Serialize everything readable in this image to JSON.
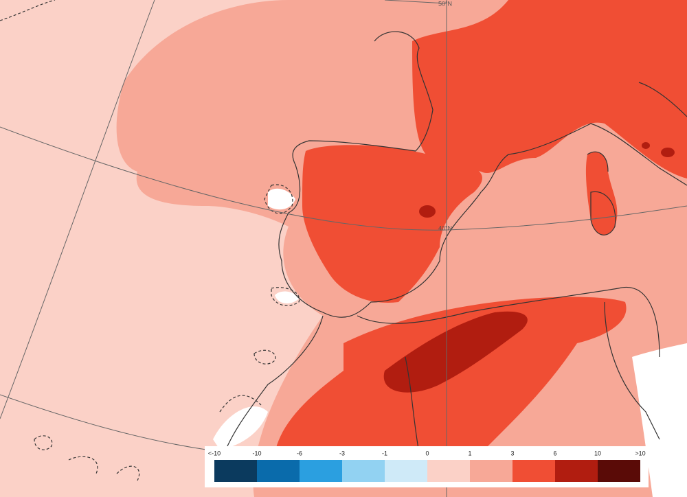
{
  "map": {
    "parallels": [
      "50°N",
      "40°N"
    ]
  },
  "legend": {
    "labels": [
      "<-10",
      "-10",
      "-6",
      "-3",
      "-1",
      "0",
      "1",
      "3",
      "6",
      "10",
      ">10"
    ],
    "colors": [
      "#0b3a5e",
      "#0a6bab",
      "#2b9fe0",
      "#92d2f2",
      "#cfeaf8",
      "#fbd1c7",
      "#f7a897",
      "#f04e34",
      "#b11d10",
      "#5a0b07"
    ]
  }
}
